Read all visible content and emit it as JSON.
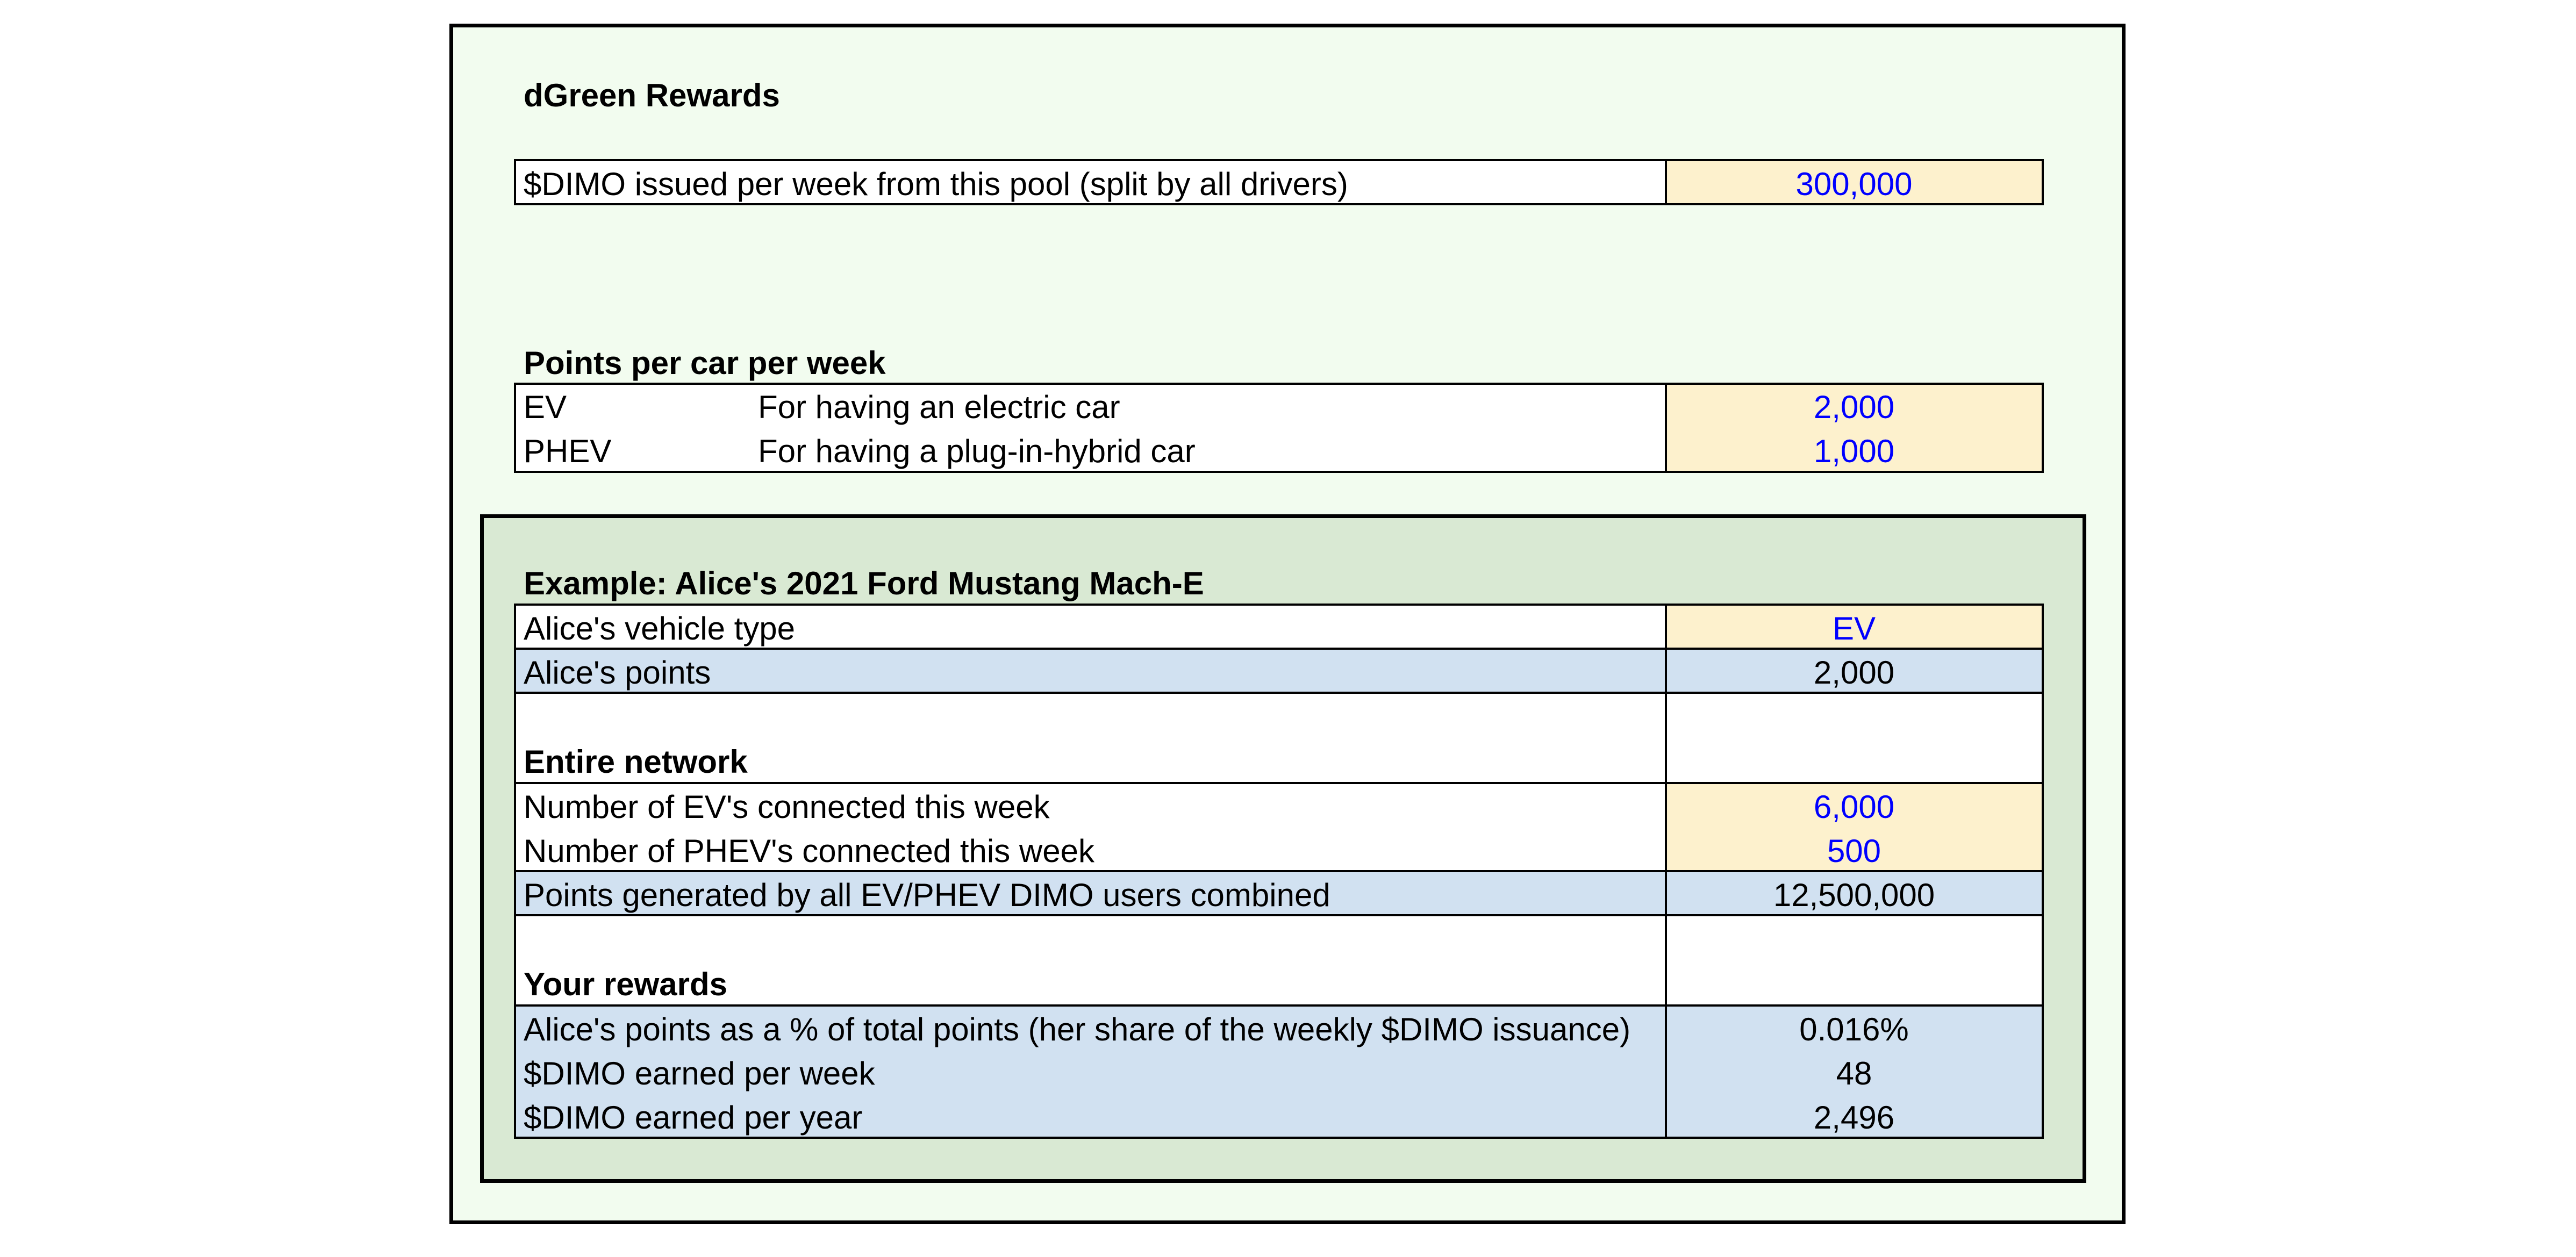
{
  "title": "dGreen Rewards",
  "pool": {
    "label": "$DIMO issued per week from this pool (split by all drivers)",
    "value": "300,000"
  },
  "points_section": {
    "heading": "Points per car per week",
    "rows": [
      {
        "type": "EV",
        "description": "For having an electric car",
        "value": "2,000"
      },
      {
        "type": "PHEV",
        "description": "For having a plug-in-hybrid car",
        "value": "1,000"
      }
    ]
  },
  "example": {
    "heading": "Example: Alice's 2021 Ford Mustang Mach-E",
    "vehicle_type_label": "Alice's vehicle type",
    "vehicle_type_value": "EV",
    "points_label": "Alice's points",
    "points_value": "2,000",
    "network": {
      "heading": "Entire network",
      "ev_label": "Number of EV's connected this week",
      "ev_value": "6,000",
      "phev_label": "Number of PHEV's connected this week",
      "phev_value": "500",
      "total_label": "Points generated by all EV/PHEV DIMO users combined",
      "total_value": "12,500,000"
    },
    "rewards": {
      "heading": "Your rewards",
      "share_label": "Alice's points as a % of total points (her share of the weekly $DIMO issuance)",
      "share_value": "0.016%",
      "week_label": "$DIMO earned per week",
      "week_value": "48",
      "year_label": "$DIMO earned per year",
      "year_value": "2,496"
    }
  },
  "colors": {
    "outer_background": "#f2fcef",
    "inner_background": "#d9e9d3",
    "input_cell": "#fdf1cd",
    "calculated_cell": "#d1e1f1",
    "input_text": "#0000ff"
  }
}
